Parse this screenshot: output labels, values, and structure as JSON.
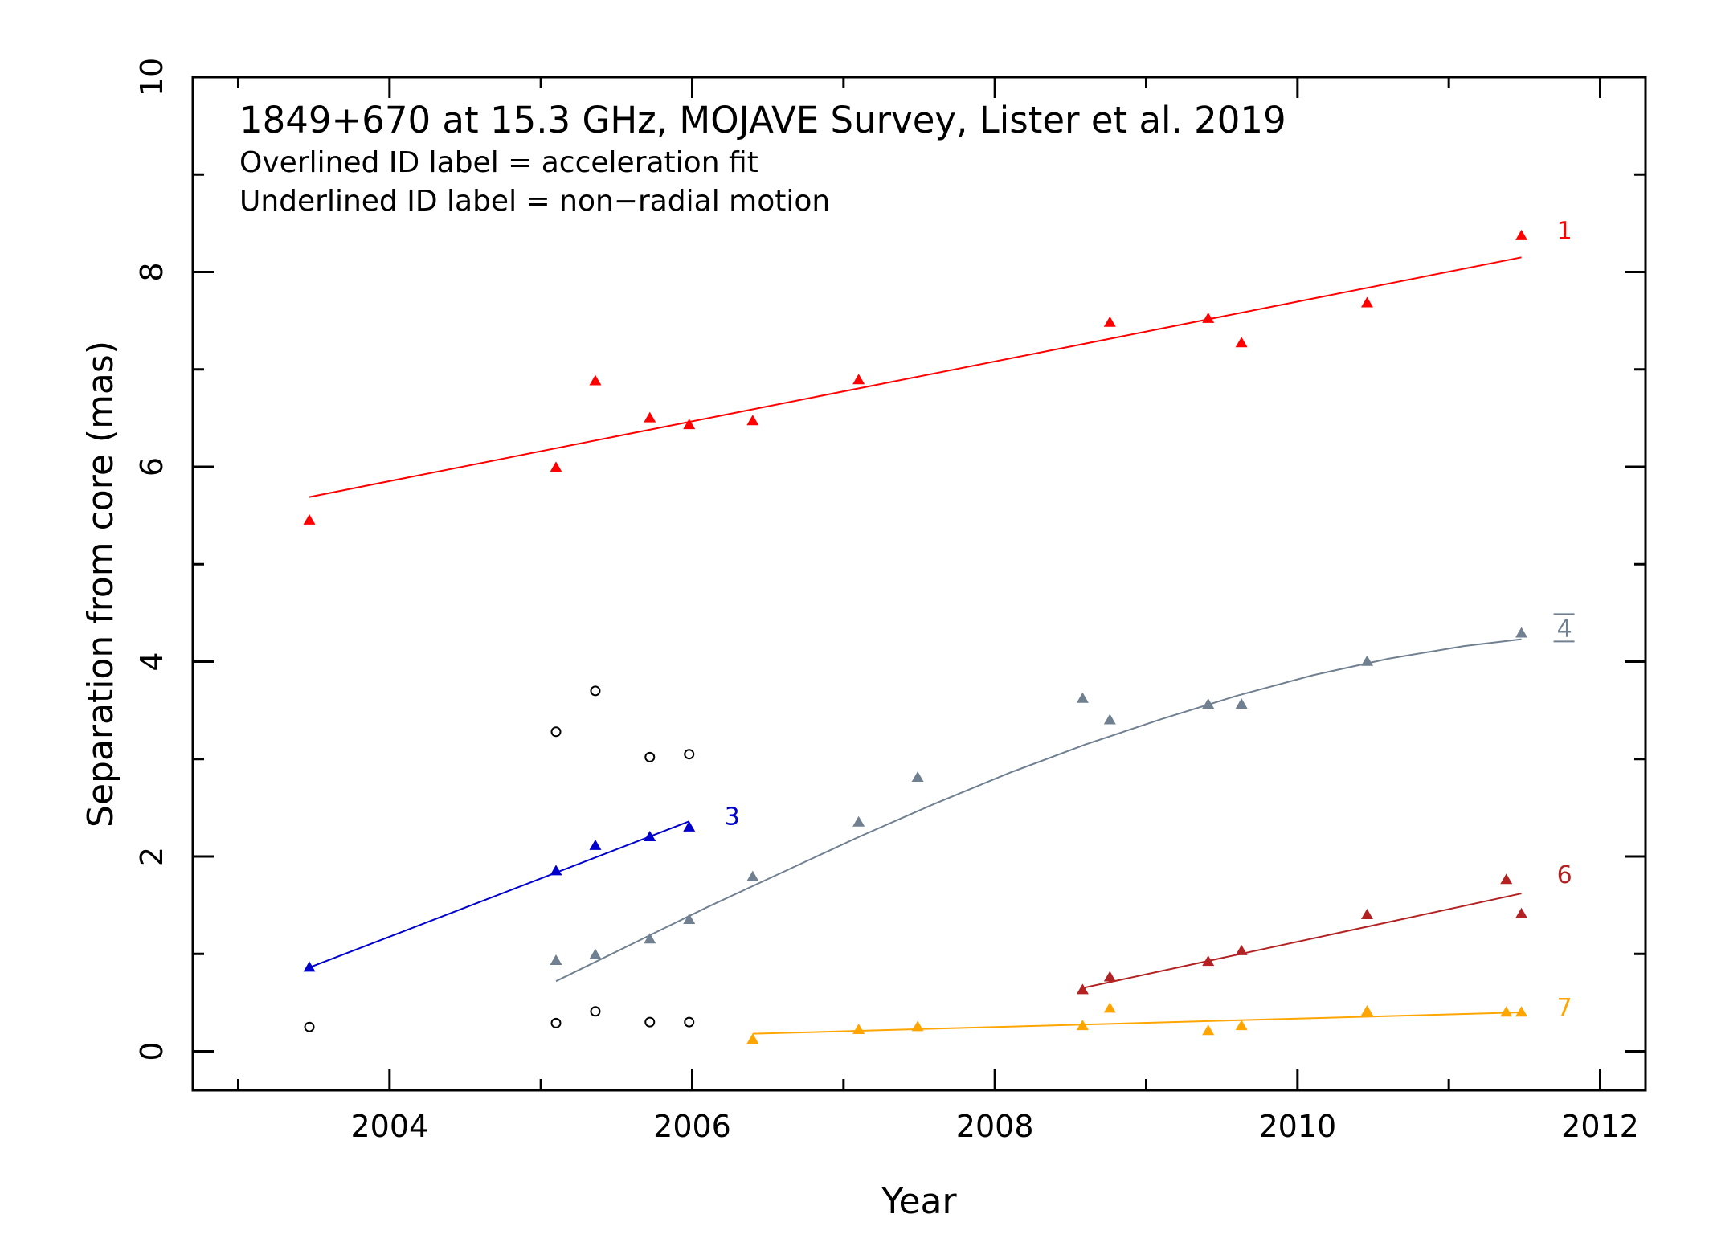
{
  "chart_data": {
    "type": "scatter",
    "title": "1849+670 at 15.3 GHz, MOJAVE Survey, Lister et al. 2019",
    "annotations": [
      "Overlined ID label = acceleration fit",
      "Underlined ID label = non−radial motion"
    ],
    "xlabel": "Year",
    "ylabel": "Separation from core (mas)",
    "xlim": [
      2002.7,
      2012.3
    ],
    "ylim": [
      -0.4,
      10
    ],
    "x_major_ticks": [
      2004,
      2006,
      2008,
      2010,
      2012
    ],
    "x_tick_labels": [
      "2004",
      "2006",
      "2008",
      "2010",
      "2012"
    ],
    "y_major_ticks": [
      0,
      2,
      4,
      6,
      8,
      10
    ],
    "y_tick_labels": [
      "0",
      "2",
      "4",
      "6",
      "8",
      "10"
    ],
    "grid": false,
    "series": [
      {
        "id_label": "1",
        "color": "#ff0000",
        "marker": "triangle",
        "fit": "linear",
        "label_overlined": false,
        "label_underlined": false,
        "x": [
          2003.47,
          2005.1,
          2005.36,
          2005.72,
          2005.98,
          2006.4,
          2007.1,
          2008.76,
          2009.41,
          2009.63,
          2010.46,
          2011.48
        ],
        "y": [
          5.45,
          5.99,
          6.88,
          6.5,
          6.43,
          6.47,
          6.89,
          7.48,
          7.52,
          7.27,
          7.68,
          8.37
        ],
        "fit_line": {
          "x": [
            2003.47,
            2011.48
          ],
          "y": [
            5.69,
            8.15
          ]
        }
      },
      {
        "id_label": "3",
        "color": "#0000cc",
        "marker": "triangle",
        "fit": "linear",
        "label_overlined": false,
        "label_underlined": false,
        "x": [
          2003.47,
          2005.1,
          2005.36,
          2005.72,
          2005.98
        ],
        "y": [
          0.86,
          1.85,
          2.11,
          2.2,
          2.3
        ],
        "fit_line": {
          "x": [
            2003.47,
            2005.98
          ],
          "y": [
            0.86,
            2.36
          ]
        }
      },
      {
        "id_label": "4",
        "color": "#708090",
        "marker": "triangle",
        "fit": "acceleration",
        "label_overlined": true,
        "label_underlined": true,
        "x": [
          2005.1,
          2005.36,
          2005.72,
          2005.98,
          2006.4,
          2007.1,
          2007.49,
          2008.58,
          2008.76,
          2009.41,
          2009.63,
          2010.46,
          2011.48
        ],
        "y": [
          0.93,
          0.99,
          1.15,
          1.35,
          1.79,
          2.35,
          2.81,
          3.62,
          3.4,
          3.56,
          3.56,
          4.0,
          4.29
        ],
        "fit_curve": {
          "x": [
            2005.1,
            2005.6,
            2006.1,
            2006.6,
            2007.1,
            2007.6,
            2008.1,
            2008.6,
            2009.1,
            2009.6,
            2010.1,
            2010.6,
            2011.1,
            2011.48
          ],
          "y": [
            0.72,
            1.1,
            1.48,
            1.84,
            2.2,
            2.54,
            2.86,
            3.15,
            3.41,
            3.65,
            3.86,
            4.03,
            4.16,
            4.23
          ]
        }
      },
      {
        "id_label": "6",
        "color": "#b22222",
        "marker": "triangle",
        "fit": "linear",
        "label_overlined": false,
        "label_underlined": false,
        "x": [
          2008.58,
          2008.76,
          2009.41,
          2009.63,
          2010.46,
          2011.38,
          2011.48
        ],
        "y": [
          0.63,
          0.76,
          0.92,
          1.03,
          1.4,
          1.76,
          1.41
        ],
        "fit_line": {
          "x": [
            2008.58,
            2011.48
          ],
          "y": [
            0.65,
            1.62
          ]
        }
      },
      {
        "id_label": "7",
        "color": "#ffa500",
        "marker": "triangle",
        "fit": "linear",
        "label_overlined": false,
        "label_underlined": false,
        "x": [
          2006.4,
          2007.1,
          2007.49,
          2008.58,
          2008.76,
          2009.41,
          2009.63,
          2010.46,
          2011.38,
          2011.48
        ],
        "y": [
          0.12,
          0.22,
          0.25,
          0.26,
          0.44,
          0.21,
          0.26,
          0.41,
          0.4,
          0.4
        ],
        "fit_line": {
          "x": [
            2006.4,
            2011.48
          ],
          "y": [
            0.18,
            0.4
          ]
        }
      },
      {
        "id_label": "",
        "color": "#000000",
        "marker": "open-circle",
        "fit": "none",
        "x": [
          2003.47,
          2005.1,
          2005.36,
          2005.72,
          2005.98,
          2005.1,
          2005.36,
          2005.72,
          2005.98
        ],
        "y": [
          0.25,
          0.29,
          0.41,
          0.3,
          0.3,
          3.28,
          3.7,
          3.02,
          3.05
        ]
      }
    ]
  }
}
